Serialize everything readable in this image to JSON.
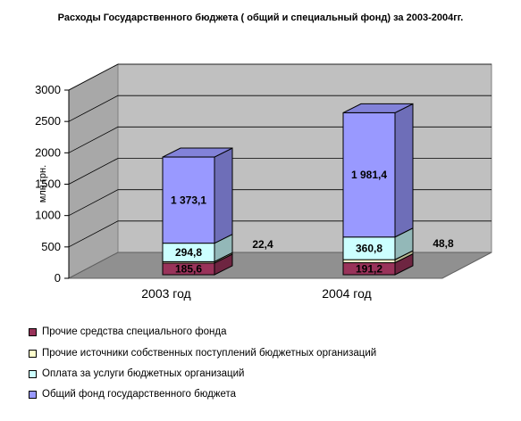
{
  "chart_data": {
    "type": "bar",
    "title": "Расходы Государственного бюджета ( общий и специальный фонд) за 2003-2004гг.",
    "ylabel": "млн.грн.",
    "ylim": [
      0,
      3000
    ],
    "yticks": [
      "0",
      "500",
      "1000",
      "1500",
      "2000",
      "2500",
      "3000"
    ],
    "categories": [
      "2003 год",
      "2004 год"
    ],
    "stacked": true,
    "grid": true,
    "legend_position": "bottom-left",
    "series": [
      {
        "name": "Прочие средства специального фонда",
        "values": [
          185.6,
          191.2
        ],
        "labels": [
          "185,6",
          "191,2"
        ],
        "color": "#99335a"
      },
      {
        "name": "Прочие источники собственных поступлений бюджетных организаций",
        "values": [
          22.4,
          48.8
        ],
        "labels": [
          "22,4",
          "48,8"
        ],
        "color": "#ffffcc"
      },
      {
        "name": "Оплата за услуги бюджетных организаций",
        "values": [
          294.8,
          360.8
        ],
        "labels": [
          "294,8",
          "360,8"
        ],
        "color": "#ccffff"
      },
      {
        "name": "Общий фонд государственного бюджета",
        "values": [
          1373.1,
          1981.4
        ],
        "labels": [
          "1 373,1",
          "1 981,4"
        ],
        "color": "#9999ff"
      }
    ]
  }
}
